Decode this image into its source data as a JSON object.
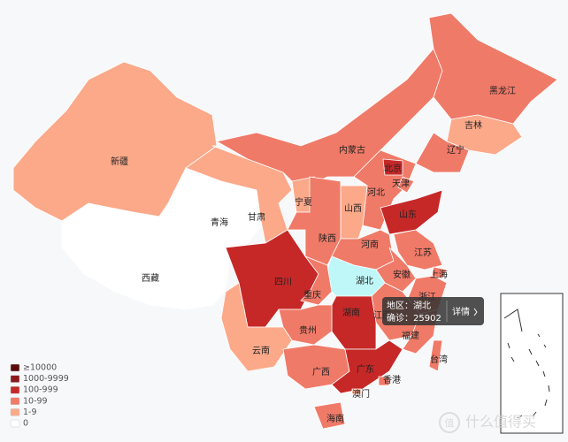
{
  "map": {
    "provinces": [
      {
        "name": "新疆",
        "color": "#fca98a"
      },
      {
        "name": "西藏",
        "color": "#ffffff"
      },
      {
        "name": "青海",
        "color": "#ffffff"
      },
      {
        "name": "甘肃",
        "color": "#fca98a"
      },
      {
        "name": "内蒙古",
        "color": "#f07a68"
      },
      {
        "name": "黑龙江",
        "color": "#f07a68"
      },
      {
        "name": "吉林",
        "color": "#fca98a"
      },
      {
        "name": "辽宁",
        "color": "#f07a68"
      },
      {
        "name": "河北",
        "color": "#f07a68"
      },
      {
        "name": "北京",
        "color": "#c62828"
      },
      {
        "name": "天津",
        "color": "#f07a68"
      },
      {
        "name": "山西",
        "color": "#fca98a"
      },
      {
        "name": "宁夏",
        "color": "#fca98a"
      },
      {
        "name": "陕西",
        "color": "#f07a68"
      },
      {
        "name": "山东",
        "color": "#c62828"
      },
      {
        "name": "河南",
        "color": "#f07a68"
      },
      {
        "name": "江苏",
        "color": "#f07a68"
      },
      {
        "name": "上海",
        "color": "#f07a68"
      },
      {
        "name": "安徽",
        "color": "#f07a68"
      },
      {
        "name": "湖北",
        "color": "#bff7f8"
      },
      {
        "name": "浙江",
        "color": "#f07a68"
      },
      {
        "name": "江西",
        "color": "#f07a68"
      },
      {
        "name": "福建",
        "color": "#f07a68"
      },
      {
        "name": "台湾",
        "color": "#f07a68"
      },
      {
        "name": "四川",
        "color": "#c62828"
      },
      {
        "name": "重庆",
        "color": "#f07a68"
      },
      {
        "name": "湖南",
        "color": "#c62828"
      },
      {
        "name": "贵州",
        "color": "#f07a68"
      },
      {
        "name": "云南",
        "color": "#fca98a"
      },
      {
        "name": "广西",
        "color": "#f07a68"
      },
      {
        "name": "广东",
        "color": "#c62828"
      },
      {
        "name": "香港",
        "color": "#f07a68"
      },
      {
        "name": "澳门",
        "color": "#fca98a"
      },
      {
        "name": "海南",
        "color": "#f07a68"
      }
    ]
  },
  "legend": {
    "items": [
      {
        "label": "≥10000",
        "color": "#5c0a0a"
      },
      {
        "label": "1000-9999",
        "color": "#8b1a1a"
      },
      {
        "label": "100-999",
        "color": "#c62828"
      },
      {
        "label": "10-99",
        "color": "#f07a68"
      },
      {
        "label": "1-9",
        "color": "#fca98a"
      },
      {
        "label": "0",
        "color": "#ffffff"
      }
    ]
  },
  "tooltip": {
    "region": "地区：湖北",
    "confirmed": "确诊：25902",
    "details": "详情"
  },
  "watermark": "什么值得买"
}
